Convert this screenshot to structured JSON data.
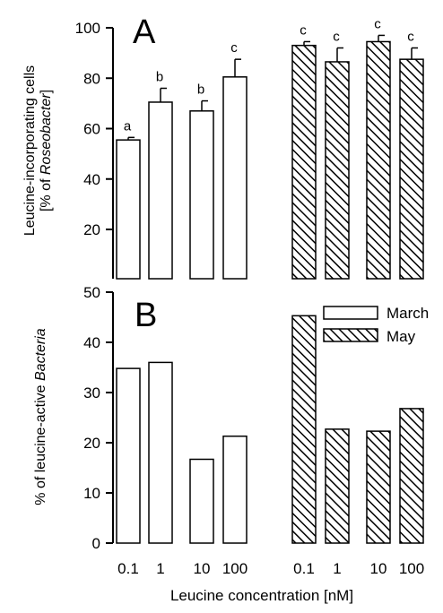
{
  "chart_data": [
    {
      "panel": "A",
      "type": "bar",
      "ylabel_line1": "Leucine-incorporating cells",
      "ylabel_line2_prefix": "[% of ",
      "ylabel_line2_italic": "Roseobacter",
      "ylabel_line2_suffix": "]",
      "ylim": [
        0,
        100
      ],
      "yticks": [
        20,
        40,
        60,
        80,
        100
      ],
      "categories": [
        "0.1",
        "1",
        "10",
        "100"
      ],
      "series": [
        {
          "name": "March",
          "pattern": "open",
          "values": [
            55.5,
            70.5,
            67,
            80.5
          ],
          "errors": [
            1,
            5.5,
            4,
            7
          ],
          "letters": [
            "a",
            "b",
            "b",
            "c"
          ]
        },
        {
          "name": "May",
          "pattern": "hatched",
          "values": [
            93,
            86.5,
            94.5,
            87.5
          ],
          "errors": [
            1.5,
            5.5,
            2.5,
            4.5
          ],
          "letters": [
            "c",
            "c",
            "c",
            "c"
          ]
        }
      ]
    },
    {
      "panel": "B",
      "type": "bar",
      "ylabel_prefix": "% of leucine-active ",
      "ylabel_italic": "Bacteria",
      "ylim": [
        0,
        50
      ],
      "yticks": [
        0,
        10,
        20,
        30,
        40,
        50
      ],
      "categories": [
        "0.1",
        "1",
        "10",
        "100"
      ],
      "series": [
        {
          "name": "March",
          "pattern": "open",
          "values": [
            34.8,
            36,
            16.7,
            21.3
          ]
        },
        {
          "name": "May",
          "pattern": "hatched",
          "values": [
            45.3,
            22.7,
            22.3,
            26.8
          ]
        }
      ],
      "legend": {
        "position": "top-right",
        "entries": [
          "March",
          "May"
        ]
      }
    }
  ],
  "xlabel": "Leucine concentration [nM]",
  "x_tick_labels": [
    "0.1",
    "1",
    "10",
    "100",
    "0.1",
    "1",
    "10",
    "100"
  ]
}
